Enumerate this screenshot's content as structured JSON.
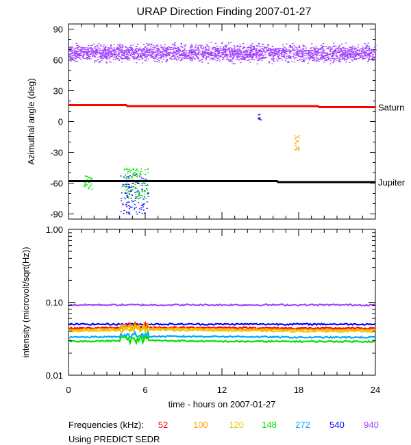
{
  "title": "URAP Direction Finding  2007-01-27",
  "legend": {
    "prefix": "Frequencies (kHz):",
    "items": [
      {
        "label": "52",
        "color": "#ff0000"
      },
      {
        "label": "100",
        "color": "#ffa500"
      },
      {
        "label": "120",
        "color": "#e6c800"
      },
      {
        "label": "148",
        "color": "#00e000"
      },
      {
        "label": "272",
        "color": "#00a8ff"
      },
      {
        "label": "540",
        "color": "#0000ff"
      },
      {
        "label": "940",
        "color": "#a040ff"
      }
    ],
    "source_note": "Using PREDICT SEDR"
  },
  "chart_data": [
    {
      "type": "scatter",
      "title": "URAP Direction Finding  2007-01-27",
      "ylabel": "Azimuthal angle (deg)",
      "xlabel": "",
      "xlim": [
        0,
        24
      ],
      "ylim": [
        -95,
        95
      ],
      "x_ticks": [
        0,
        6,
        12,
        18,
        24
      ],
      "y_ticks": [
        90,
        60,
        30,
        0,
        -30,
        -60,
        -90
      ],
      "grid": false,
      "reference_lines": [
        {
          "name": "Saturn",
          "color": "#ff0000",
          "points": [
            [
              0,
              16
            ],
            [
              4.5,
              16
            ],
            [
              4.6,
              15
            ],
            [
              19.5,
              15
            ],
            [
              19.6,
              14
            ],
            [
              24,
              14
            ]
          ]
        },
        {
          "name": "Jupiter",
          "color": "#000000",
          "points": [
            [
              0,
              -58
            ],
            [
              16.3,
              -58
            ],
            [
              16.4,
              -59
            ],
            [
              24,
              -59
            ]
          ]
        }
      ],
      "series": [
        {
          "name": "940",
          "color": "#a040ff",
          "band": {
            "x": [
              0,
              24
            ],
            "center": 67,
            "spread": 8
          }
        },
        {
          "name": "540",
          "color": "#0000ff",
          "clusters": [
            {
              "x": [
                4.0,
                6.2
              ],
              "y": [
                -90,
                -50
              ]
            },
            {
              "x": [
                14.8,
                15.0
              ],
              "y": [
                2,
                8
              ]
            }
          ]
        },
        {
          "name": "148",
          "color": "#00e000",
          "clusters": [
            {
              "x": [
                1.2,
                1.8
              ],
              "y": [
                -66,
                -52
              ]
            },
            {
              "x": [
                4.2,
                6.2
              ],
              "y": [
                -75,
                -45
              ]
            }
          ]
        },
        {
          "name": "100",
          "color": "#ffa500",
          "clusters": [
            {
              "x": [
                17.6,
                18.0
              ],
              "y": [
                -28,
                -12
              ]
            }
          ]
        }
      ]
    },
    {
      "type": "line",
      "ylabel": "intensity (microvolt/sqrt(Hz))",
      "xlabel": "time - hours on 2007-01-27",
      "xlim": [
        0,
        24
      ],
      "ylim": [
        0.01,
        1.0
      ],
      "y_scale": "log",
      "x_ticks": [
        0,
        6,
        12,
        18,
        24
      ],
      "y_ticks": [
        1.0,
        0.1,
        0.01
      ],
      "y_tick_labels": [
        "1.00",
        "0.10",
        "0.01"
      ],
      "grid": false,
      "series": [
        {
          "name": "940",
          "color": "#a040ff",
          "x": [
            0,
            6,
            12,
            18,
            24
          ],
          "values": [
            0.092,
            0.092,
            0.092,
            0.092,
            0.092
          ]
        },
        {
          "name": "540",
          "color": "#0000ff",
          "x": [
            0,
            6,
            12,
            18,
            24
          ],
          "values": [
            0.05,
            0.05,
            0.05,
            0.05,
            0.05
          ]
        },
        {
          "name": "52",
          "color": "#ff0000",
          "x": [
            0,
            6,
            12,
            18,
            24
          ],
          "values": [
            0.044,
            0.045,
            0.045,
            0.044,
            0.044
          ]
        },
        {
          "name": "100",
          "color": "#ffa500",
          "x": [
            0,
            6,
            12,
            18,
            24
          ],
          "values": [
            0.042,
            0.044,
            0.043,
            0.042,
            0.042
          ]
        },
        {
          "name": "120",
          "color": "#e6c800",
          "x": [
            0,
            6,
            12,
            18,
            24
          ],
          "values": [
            0.04,
            0.042,
            0.041,
            0.04,
            0.04
          ]
        },
        {
          "name": "272",
          "color": "#00a8ff",
          "x": [
            0,
            6,
            12,
            18,
            24
          ],
          "values": [
            0.033,
            0.034,
            0.034,
            0.033,
            0.033
          ]
        },
        {
          "name": "148",
          "color": "#00e000",
          "x": [
            0,
            6,
            12,
            18,
            24
          ],
          "values": [
            0.029,
            0.03,
            0.029,
            0.029,
            0.029
          ]
        }
      ]
    }
  ]
}
